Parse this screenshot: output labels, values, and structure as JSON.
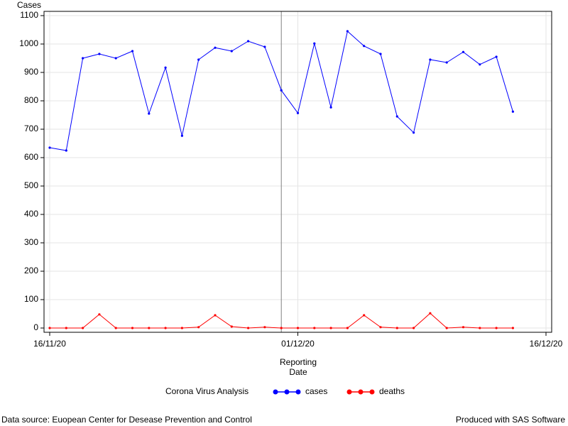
{
  "chart_data": {
    "type": "line",
    "y_label": "Cases",
    "x_label": "Reporting Date",
    "x": [
      "2020-11-16",
      "2020-11-17",
      "2020-11-18",
      "2020-11-19",
      "2020-11-20",
      "2020-11-21",
      "2020-11-22",
      "2020-11-23",
      "2020-11-24",
      "2020-11-25",
      "2020-11-26",
      "2020-11-27",
      "2020-11-28",
      "2020-11-29",
      "2020-11-30",
      "2020-12-01",
      "2020-12-02",
      "2020-12-03",
      "2020-12-04",
      "2020-12-05",
      "2020-12-06",
      "2020-12-07",
      "2020-12-08",
      "2020-12-09",
      "2020-12-10",
      "2020-12-11",
      "2020-12-12",
      "2020-12-13",
      "2020-12-14"
    ],
    "series": [
      {
        "name": "cases",
        "color": "#0000ff",
        "values": [
          635,
          625,
          950,
          965,
          950,
          975,
          755,
          917,
          677,
          945,
          987,
          975,
          1010,
          990,
          837,
          757,
          1002,
          777,
          1045,
          993,
          965,
          745,
          688,
          945,
          935,
          972,
          928,
          955,
          762
        ]
      },
      {
        "name": "deaths",
        "color": "#ff0000",
        "values": [
          0,
          0,
          0,
          48,
          0,
          0,
          0,
          0,
          0,
          3,
          45,
          5,
          0,
          3,
          0,
          0,
          0,
          0,
          0,
          45,
          3,
          0,
          0,
          52,
          0,
          3,
          0,
          0,
          0
        ]
      }
    ],
    "xlim": [
      "2020-11-16",
      "2020-12-16"
    ],
    "xticks": [
      {
        "value": "2020-11-16",
        "label": "16/11/20"
      },
      {
        "value": "2020-12-01",
        "label": "01/12/20"
      },
      {
        "value": "2020-12-16",
        "label": "16/12/20"
      }
    ],
    "ylim": [
      -15,
      1115
    ],
    "yticks": [
      0,
      100,
      200,
      300,
      400,
      500,
      600,
      700,
      800,
      900,
      1000,
      1100
    ],
    "grid": true,
    "reference_line": "2020-11-30",
    "legend_title": "Corona Virus Analysis",
    "footnote_left": "Data source: Euopean Center for Desease Prevention and Control",
    "footnote_right": "Produced with SAS Software"
  }
}
